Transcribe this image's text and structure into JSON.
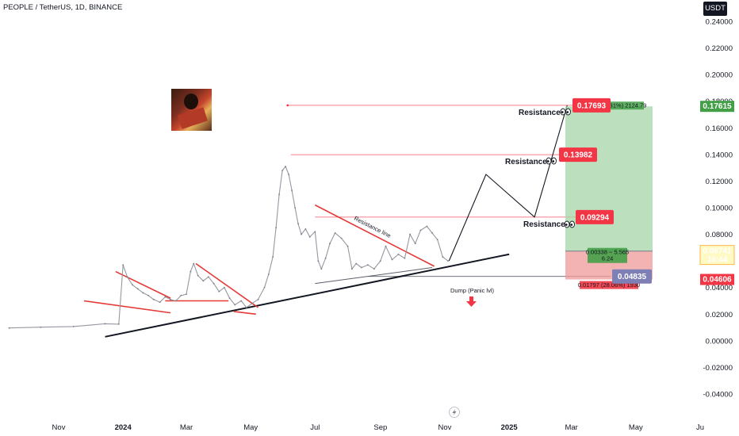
{
  "header": {
    "symbol_title": "PEOPLE / TetherUS, 1D, BINANCE"
  },
  "currency_button": "USDT",
  "chart_data": {
    "type": "line",
    "title": "PEOPLE / TetherUS, 1D, BINANCE",
    "ylim": [
      -0.05,
      0.25
    ],
    "y_ticks": [
      "0.24000",
      "0.22000",
      "0.20000",
      "0.18000",
      "0.16000",
      "0.14000",
      "0.12000",
      "0.10000",
      "0.08000",
      "0.06000",
      "0.04000",
      "0.02000",
      "0.00000",
      "-0.02000",
      "-0.04000"
    ],
    "y_tick_values": [
      0.24,
      0.22,
      0.2,
      0.18,
      0.16,
      0.14,
      0.12,
      0.1,
      0.08,
      0.06,
      0.04,
      0.02,
      0.0,
      -0.02,
      -0.04
    ],
    "x_ticks": [
      {
        "label": "Nov",
        "date": "2023-11-01",
        "bold": false
      },
      {
        "label": "2024",
        "date": "2024-01-01",
        "bold": true
      },
      {
        "label": "Mar",
        "date": "2024-03-01",
        "bold": false
      },
      {
        "label": "May",
        "date": "2024-05-01",
        "bold": false
      },
      {
        "label": "Jul",
        "date": "2024-07-01",
        "bold": false
      },
      {
        "label": "Sep",
        "date": "2024-09-01",
        "bold": false
      },
      {
        "label": "Nov",
        "date": "2024-11-01",
        "bold": false
      },
      {
        "label": "2025",
        "date": "2025-01-01",
        "bold": true
      },
      {
        "label": "Mar",
        "date": "2025-03-01",
        "bold": false
      },
      {
        "label": "May",
        "date": "2025-05-01",
        "bold": false
      },
      {
        "label": "Ju",
        "date": "2025-07-01",
        "bold": false
      }
    ],
    "series": [
      {
        "points": [
          [
            "2023-09-15",
            0.0096
          ],
          [
            "2023-10-15",
            0.0102
          ],
          [
            "2023-11-15",
            0.0107
          ],
          [
            "2023-12-15",
            0.0128
          ],
          [
            "2023-12-28",
            0.0125
          ],
          [
            "2024-01-01",
            0.057
          ],
          [
            "2024-01-05",
            0.048
          ],
          [
            "2024-01-10",
            0.042
          ],
          [
            "2024-01-15",
            0.039
          ],
          [
            "2024-01-20",
            0.036
          ],
          [
            "2024-01-25",
            0.034
          ],
          [
            "2024-01-30",
            0.031
          ],
          [
            "2024-02-05",
            0.029
          ],
          [
            "2024-02-10",
            0.033
          ],
          [
            "2024-02-15",
            0.031
          ],
          [
            "2024-02-20",
            0.03
          ],
          [
            "2024-02-25",
            0.034
          ],
          [
            "2024-03-01",
            0.035
          ],
          [
            "2024-03-05",
            0.052
          ],
          [
            "2024-03-08",
            0.058
          ],
          [
            "2024-03-12",
            0.049
          ],
          [
            "2024-03-17",
            0.045
          ],
          [
            "2024-03-22",
            0.048
          ],
          [
            "2024-03-27",
            0.043
          ],
          [
            "2024-04-01",
            0.037
          ],
          [
            "2024-04-06",
            0.04
          ],
          [
            "2024-04-11",
            0.032
          ],
          [
            "2024-04-16",
            0.027
          ],
          [
            "2024-04-22",
            0.03
          ],
          [
            "2024-04-27",
            0.025
          ],
          [
            "2024-05-02",
            0.028
          ],
          [
            "2024-05-08",
            0.031
          ],
          [
            "2024-05-14",
            0.04
          ],
          [
            "2024-05-18",
            0.05
          ],
          [
            "2024-05-22",
            0.063
          ],
          [
            "2024-05-25",
            0.085
          ],
          [
            "2024-05-28",
            0.11
          ],
          [
            "2024-05-31",
            0.128
          ],
          [
            "2024-06-03",
            0.131
          ],
          [
            "2024-06-06",
            0.125
          ],
          [
            "2024-06-09",
            0.113
          ],
          [
            "2024-06-12",
            0.1
          ],
          [
            "2024-06-15",
            0.088
          ],
          [
            "2024-06-18",
            0.08
          ],
          [
            "2024-06-22",
            0.084
          ],
          [
            "2024-06-26",
            0.078
          ],
          [
            "2024-07-01",
            0.082
          ],
          [
            "2024-07-04",
            0.06
          ],
          [
            "2024-07-07",
            0.054
          ],
          [
            "2024-07-11",
            0.062
          ],
          [
            "2024-07-15",
            0.073
          ],
          [
            "2024-07-20",
            0.081
          ],
          [
            "2024-07-26",
            0.077
          ],
          [
            "2024-08-01",
            0.071
          ],
          [
            "2024-08-05",
            0.054
          ],
          [
            "2024-08-09",
            0.058
          ],
          [
            "2024-08-14",
            0.055
          ],
          [
            "2024-08-20",
            0.057
          ],
          [
            "2024-08-26",
            0.054
          ],
          [
            "2024-09-01",
            0.06
          ],
          [
            "2024-09-06",
            0.071
          ],
          [
            "2024-09-12",
            0.061
          ],
          [
            "2024-09-18",
            0.065
          ],
          [
            "2024-09-24",
            0.062
          ],
          [
            "2024-09-29",
            0.08
          ],
          [
            "2024-10-04",
            0.073
          ],
          [
            "2024-10-09",
            0.083
          ],
          [
            "2024-10-15",
            0.086
          ],
          [
            "2024-10-20",
            0.081
          ],
          [
            "2024-10-25",
            0.076
          ],
          [
            "2024-10-30",
            0.063
          ],
          [
            "2024-11-04",
            0.06
          ]
        ]
      }
    ],
    "resistance_levels": [
      {
        "value": 0.17693,
        "label": "0.17693"
      },
      {
        "value": 0.13982,
        "label": "0.13982"
      },
      {
        "value": 0.09294,
        "label": "0.09294"
      }
    ],
    "support_level": {
      "value": 0.04835,
      "label": "0.04835"
    },
    "current_price": {
      "value": 0.06741,
      "label": "0.06741",
      "countdown": "16:44"
    },
    "stop_level": {
      "value": 0.04606,
      "label": "0.04606"
    },
    "target_level": {
      "value": 0.17615,
      "label": "0.17615"
    },
    "position_labels": {
      "target": ".31%) 2124.79",
      "entry_line1": "0.00338 − 5.565",
      "entry_line2": "6.24",
      "stop": "0.01797 (28.06%) 1930"
    },
    "annotations": {
      "resistance_1": "Resistance",
      "resistance_2": "Resistance",
      "resistance_3": "Resistance",
      "resistance_line": "Resistance line",
      "dump": "Dump (Panic lvl)"
    },
    "projection_path": [
      [
        "2024-11-05",
        0.06
      ],
      [
        "2024-12-10",
        0.125
      ],
      [
        "2025-01-25",
        0.093
      ],
      [
        "2025-02-25",
        0.17693
      ]
    ],
    "trendlines": {
      "main_support": [
        [
          "2023-12-15",
          0.003
        ],
        [
          "2025-01-01",
          0.065
        ]
      ],
      "triangle_base": [
        [
          "2024-07-01",
          0.043
        ],
        [
          "2024-10-20",
          0.055
        ]
      ],
      "resistance_line": [
        [
          "2024-07-01",
          0.102
        ],
        [
          "2024-10-22",
          0.056
        ]
      ],
      "red_support_1": [
        [
          "2023-11-25",
          0.03
        ],
        [
          "2024-02-15",
          0.021
        ]
      ],
      "red_resist_1": [
        [
          "2023-12-25",
          0.052
        ],
        [
          "2024-02-15",
          0.032
        ]
      ],
      "red_support_2": [
        [
          "2024-02-10",
          0.03
        ],
        [
          "2024-04-10",
          0.03
        ]
      ],
      "red_resist_2": [
        [
          "2024-03-10",
          0.058
        ],
        [
          "2024-05-08",
          0.025
        ]
      ],
      "red_support_3": [
        [
          "2024-04-15",
          0.022
        ],
        [
          "2024-05-06",
          0.02
        ]
      ]
    },
    "grid": false,
    "legend": "none"
  },
  "icons": {
    "emoji": "eyes-icon",
    "arrow": "arrow-down-icon",
    "flash": "lightning-icon"
  }
}
